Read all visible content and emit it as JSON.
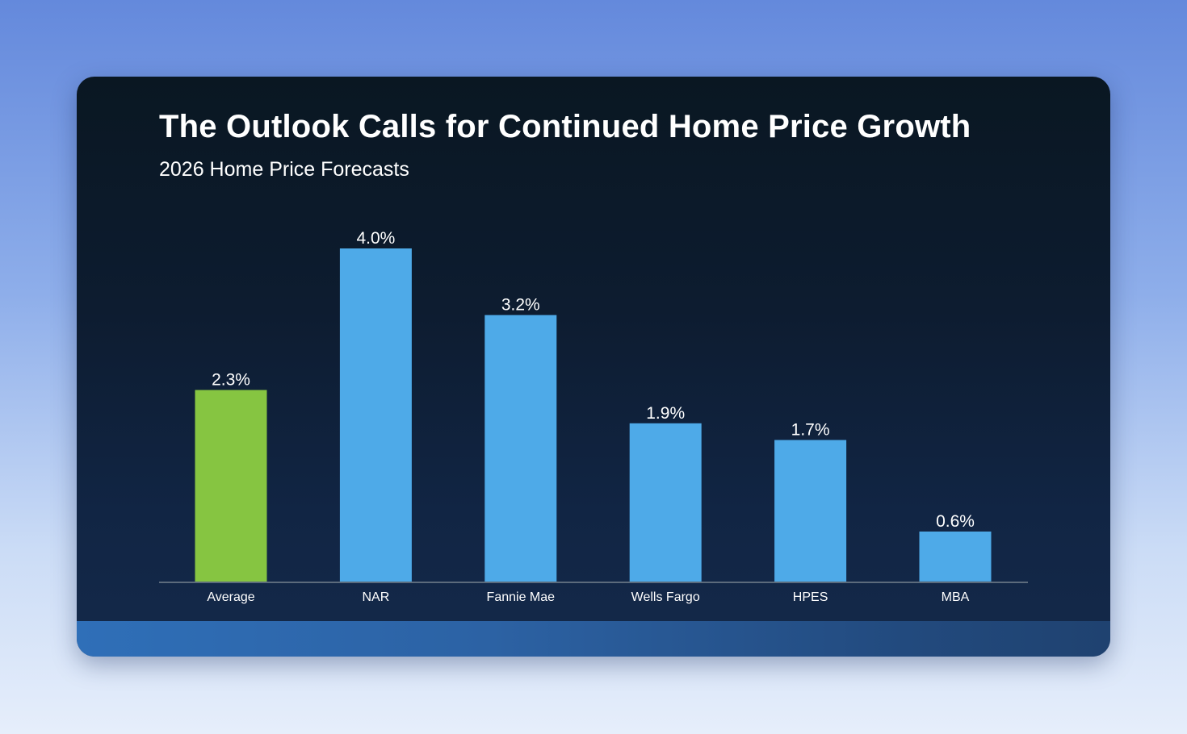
{
  "title": "The Outlook Calls for Continued Home Price Growth",
  "subtitle": "2026 Home Price Forecasts",
  "colors": {
    "highlight": "#86c541",
    "bar": "#4eaae8",
    "axis": "#5c6b7c",
    "text": "#ffffff"
  },
  "chart_data": {
    "type": "bar",
    "categories": [
      "Average",
      "NAR",
      "Fannie Mae",
      "Wells Fargo",
      "HPES",
      "MBA"
    ],
    "values": [
      2.3,
      4.0,
      3.2,
      1.9,
      1.7,
      0.6
    ],
    "value_labels": [
      "2.3%",
      "4.0%",
      "3.2%",
      "1.9%",
      "1.7%",
      "0.6%"
    ],
    "highlighted_category": "Average",
    "ylim": [
      0,
      4.0
    ],
    "grid": false,
    "legend": "none",
    "xlabel": "",
    "ylabel": ""
  }
}
